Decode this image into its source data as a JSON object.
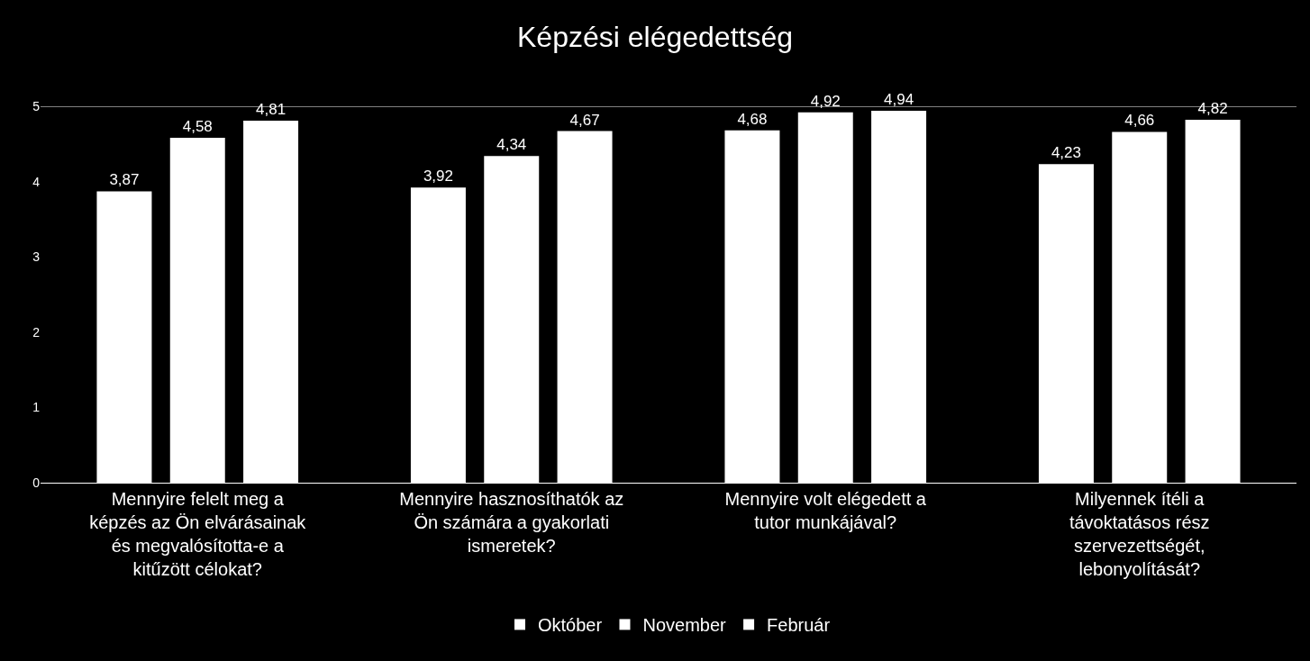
{
  "chart_data": {
    "type": "bar",
    "title": "Képzési elégedettség",
    "categories": [
      "Mennyire felelt meg a képzés az Ön elvárásainak és megvalósította-e a kitűzött célokat?",
      "Mennyire hasznosíthatók az Ön számára a gyakorlati ismeretek?",
      "Mennyire volt elégedett a tutor munkájával?",
      "Milyennek ítéli a távoktatásos rész szervezettségét, lebonyolítását?"
    ],
    "series": [
      {
        "name": "Október",
        "color": "#ffffff",
        "values": [
          3.87,
          3.92,
          4.68,
          4.23
        ],
        "value_labels": [
          "3,87",
          "3,92",
          "4,68",
          "4,23"
        ]
      },
      {
        "name": "November",
        "color": "#ffffff",
        "values": [
          4.58,
          4.34,
          4.92,
          4.66
        ],
        "value_labels": [
          "4,58",
          "4,34",
          "4,92",
          "4,66"
        ]
      },
      {
        "name": "Február",
        "color": "#ffffff",
        "values": [
          4.81,
          4.67,
          4.94,
          4.82
        ],
        "value_labels": [
          "4,81",
          "4,67",
          "4,94",
          "4,82"
        ]
      }
    ],
    "ylim": [
      0,
      5
    ],
    "yticks": [
      0,
      1,
      2,
      3,
      4,
      5
    ],
    "grid": false,
    "legend": "bottom",
    "ref_lines": [
      {
        "axis": "y",
        "value": 5,
        "color": "#ffffff"
      }
    ]
  }
}
